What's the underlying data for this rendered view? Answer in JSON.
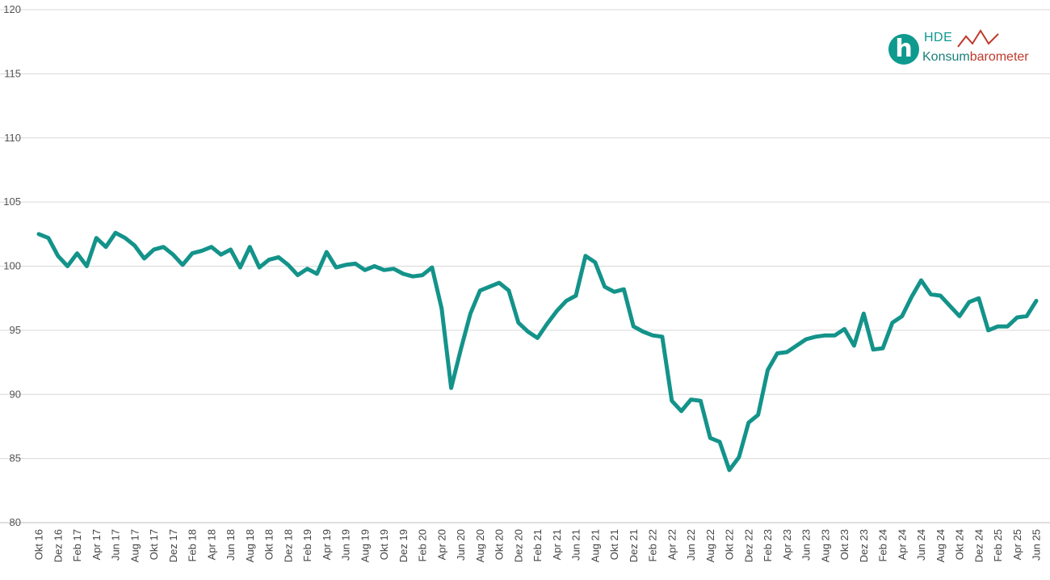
{
  "logo": {
    "hde": "HDE",
    "word_part1": "Konsum",
    "word_part2": "barometer",
    "glyph": "h",
    "colors": {
      "teal": "#0e9a8e",
      "red": "#c0392b"
    }
  },
  "chart_data": {
    "type": "line",
    "title": "",
    "xlabel": "",
    "ylabel": "",
    "ylim": [
      80,
      120
    ],
    "yticks": [
      80,
      85,
      90,
      95,
      100,
      105,
      110,
      115,
      120
    ],
    "grid": true,
    "legend": "none",
    "x": [
      "Okt 16",
      "Nov 16",
      "Dez 16",
      "Jan 17",
      "Feb 17",
      "Mär 17",
      "Apr 17",
      "Mai 17",
      "Jun 17",
      "Jul 17",
      "Aug 17",
      "Sep 17",
      "Okt 17",
      "Nov 17",
      "Dez 17",
      "Jan 18",
      "Feb 18",
      "Mär 18",
      "Apr 18",
      "Mai 18",
      "Jun 18",
      "Jul 18",
      "Aug 18",
      "Sep 18",
      "Okt 18",
      "Nov 18",
      "Dez 18",
      "Jan 19",
      "Feb 19",
      "Mär 19",
      "Apr 19",
      "Mai 19",
      "Jun 19",
      "Jul 19",
      "Aug 19",
      "Sep 19",
      "Okt 19",
      "Nov 19",
      "Dez 19",
      "Jan 20",
      "Feb 20",
      "Mär 20",
      "Apr 20",
      "Mai 20",
      "Jun 20",
      "Jul 20",
      "Aug 20",
      "Sep 20",
      "Okt 20",
      "Nov 20",
      "Dez 20",
      "Jan 21",
      "Feb 21",
      "Mär 21",
      "Apr 21",
      "Mai 21",
      "Jun 21",
      "Jul 21",
      "Aug 21",
      "Sep 21",
      "Okt 21",
      "Nov 21",
      "Dez 21",
      "Jan 22",
      "Feb 22",
      "Mär 22",
      "Apr 22",
      "Mai 22",
      "Jun 22",
      "Jul 22",
      "Aug 22",
      "Sep 22",
      "Okt 22",
      "Nov 22",
      "Dez 22",
      "Jan 23",
      "Feb 23",
      "Mär 23",
      "Apr 23",
      "Mai 23",
      "Jun 23",
      "Jul 23",
      "Aug 23",
      "Sep 23",
      "Okt 23",
      "Nov 23",
      "Dez 23",
      "Jan 24",
      "Feb 24",
      "Mär 24",
      "Apr 24",
      "Mai 24",
      "Jun 24",
      "Jul 24",
      "Aug 24",
      "Sep 24",
      "Okt 24",
      "Nov 24",
      "Dez 24",
      "Jan 25",
      "Feb 25",
      "Mär 25",
      "Apr 25",
      "Mai 25",
      "Jun 25"
    ],
    "xtick_labels": [
      "Okt 16",
      "Dez 16",
      "Feb 17",
      "Apr 17",
      "Jun 17",
      "Aug 17",
      "Okt 17",
      "Dez 17",
      "Feb 18",
      "Apr 18",
      "Jun 18",
      "Aug 18",
      "Okt 18",
      "Dez 18",
      "Feb 19",
      "Apr 19",
      "Jun 19",
      "Aug 19",
      "Okt 19",
      "Dez 19",
      "Feb 20",
      "Apr 20",
      "Jun 20",
      "Aug 20",
      "Okt 20",
      "Dez 20",
      "Feb 21",
      "Apr 21",
      "Jun 21",
      "Aug 21",
      "Okt 21",
      "Dez 21",
      "Feb 22",
      "Apr 22",
      "Jun 22",
      "Aug 22",
      "Okt 22",
      "Dez 22",
      "Feb 23",
      "Apr 23",
      "Jun 23",
      "Aug 23",
      "Okt 23",
      "Dez 23",
      "Feb 24",
      "Apr 24",
      "Jun 24",
      "Aug 24",
      "Okt 24",
      "Dez 24",
      "Feb 25",
      "Apr 25",
      "Jun 25"
    ],
    "series": [
      {
        "color": "#13938a",
        "values": [
          102.5,
          102.2,
          100.8,
          100.0,
          101.0,
          100.0,
          102.2,
          101.5,
          102.6,
          102.2,
          101.6,
          100.6,
          101.3,
          101.5,
          100.9,
          100.1,
          101.0,
          101.2,
          101.5,
          100.9,
          101.3,
          99.9,
          101.5,
          99.9,
          100.5,
          100.7,
          100.1,
          99.3,
          99.8,
          99.4,
          101.1,
          99.9,
          100.1,
          100.2,
          99.7,
          100.0,
          99.7,
          99.8,
          99.4,
          99.2,
          99.3,
          99.9,
          96.7,
          90.5,
          93.5,
          96.3,
          98.1,
          98.4,
          98.7,
          98.1,
          95.6,
          94.9,
          94.4,
          95.5,
          96.5,
          97.3,
          97.7,
          100.8,
          100.3,
          98.4,
          98.0,
          98.2,
          95.3,
          94.9,
          94.6,
          94.5,
          89.5,
          88.7,
          89.6,
          89.5,
          86.6,
          86.3,
          84.1,
          85.1,
          87.8,
          88.4,
          91.9,
          93.2,
          93.3,
          93.8,
          94.3,
          94.5,
          94.6,
          94.6,
          95.1,
          93.8,
          96.3,
          93.5,
          93.6,
          95.6,
          96.1,
          97.6,
          98.9,
          97.8,
          97.7,
          96.9,
          96.1,
          97.2,
          97.5,
          95.0,
          95.3,
          95.3,
          96.0,
          96.1,
          97.3
        ]
      }
    ]
  }
}
